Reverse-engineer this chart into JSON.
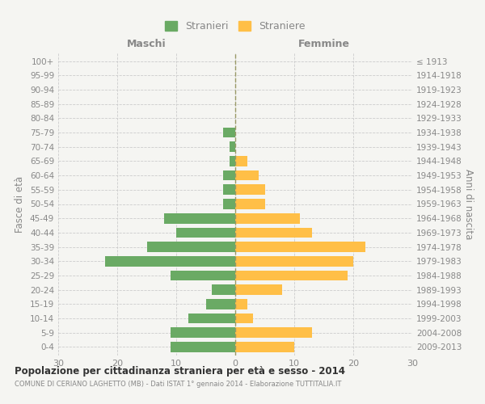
{
  "age_groups": [
    "100+",
    "95-99",
    "90-94",
    "85-89",
    "80-84",
    "75-79",
    "70-74",
    "65-69",
    "60-64",
    "55-59",
    "50-54",
    "45-49",
    "40-44",
    "35-39",
    "30-34",
    "25-29",
    "20-24",
    "15-19",
    "10-14",
    "5-9",
    "0-4"
  ],
  "birth_years": [
    "≤ 1913",
    "1914-1918",
    "1919-1923",
    "1924-1928",
    "1929-1933",
    "1934-1938",
    "1939-1943",
    "1944-1948",
    "1949-1953",
    "1954-1958",
    "1959-1963",
    "1964-1968",
    "1969-1973",
    "1974-1978",
    "1979-1983",
    "1984-1988",
    "1989-1993",
    "1994-1998",
    "1999-2003",
    "2004-2008",
    "2009-2013"
  ],
  "males": [
    0,
    0,
    0,
    0,
    0,
    2,
    1,
    1,
    2,
    2,
    2,
    12,
    10,
    15,
    22,
    11,
    4,
    5,
    8,
    11,
    11
  ],
  "females": [
    0,
    0,
    0,
    0,
    0,
    0,
    0,
    2,
    4,
    5,
    5,
    11,
    13,
    22,
    20,
    19,
    8,
    2,
    3,
    13,
    10
  ],
  "male_color": "#6aaa64",
  "female_color": "#ffbf47",
  "male_label": "Stranieri",
  "female_label": "Straniere",
  "maschi_label": "Maschi",
  "femmine_label": "Femmine",
  "ylabel": "Fasce di età",
  "right_ylabel": "Anni di nascita",
  "title": "Popolazione per cittadinanza straniera per età e sesso - 2014",
  "subtitle": "COMUNE DI CERIANO LAGHETTO (MB) - Dati ISTAT 1° gennaio 2014 - Elaborazione TUTTITALIA.IT",
  "xlim": 30,
  "background_color": "#f5f5f2",
  "grid_color": "#cccccc",
  "tick_color": "#888888",
  "label_color": "#888888",
  "center_line_color": "#999966"
}
